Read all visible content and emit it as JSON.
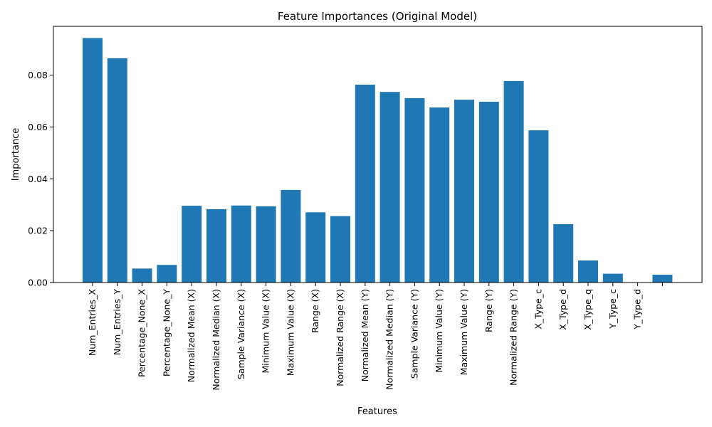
{
  "chart_data": {
    "type": "bar",
    "title": "Feature Importances (Original Model)",
    "xlabel": "Features",
    "ylabel": "Importance",
    "ylim": [
      0,
      0.0988
    ],
    "yticks": [
      0.0,
      0.02,
      0.04,
      0.06,
      0.08
    ],
    "ytick_labels": [
      "0.00",
      "0.02",
      "0.04",
      "0.06",
      "0.08"
    ],
    "grid": false,
    "bar_color": "#1f77b4",
    "categories": [
      "Num_Entries_X",
      "Num_Entries_Y",
      "Percentage_None_X",
      "Percentage_None_Y",
      "Normalized Mean (X)",
      "Normalized Median (X)",
      "Sample Variance (X)",
      "Minimum Value (X)",
      "Maximum Value (X)",
      "Range (X)",
      "Normalized Range (X)",
      "Normalized Mean (Y)",
      "Normalized Median (Y)",
      "Sample Variance (Y)",
      "Minimum Value (Y)",
      "Maximum Value (Y)",
      "Range (Y)",
      "Normalized Range (Y)",
      "X_Type_c",
      "X_Type_d",
      "X_Type_q",
      "Y_Type_c",
      "Y_Type_d",
      ""
    ],
    "values": [
      0.0943,
      0.0865,
      0.0054,
      0.0068,
      0.0296,
      0.0283,
      0.0297,
      0.0294,
      0.0357,
      0.0271,
      0.0256,
      0.0763,
      0.0735,
      0.0711,
      0.0675,
      0.0705,
      0.0697,
      0.0777,
      0.0587,
      0.0225,
      0.0085,
      0.0034,
      0.0,
      0.003
    ]
  }
}
